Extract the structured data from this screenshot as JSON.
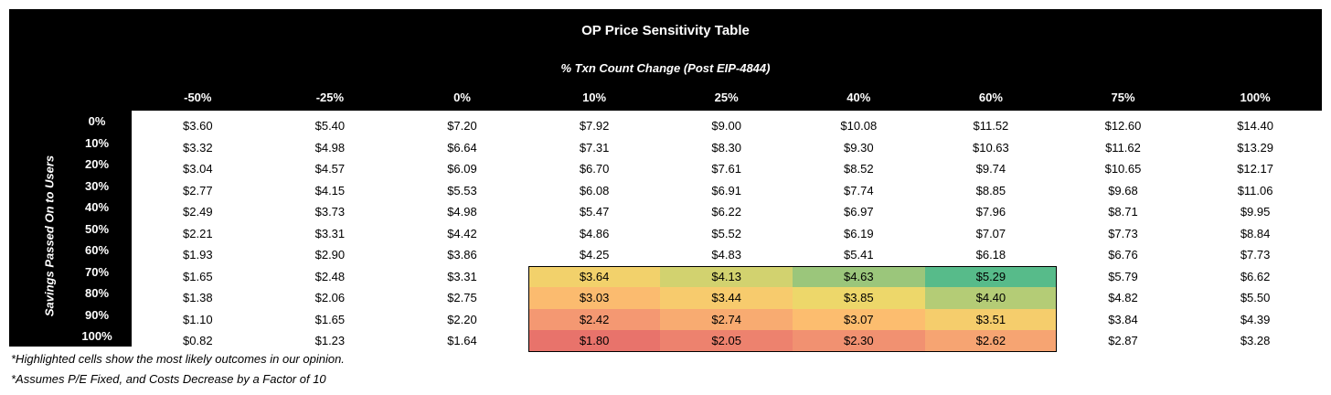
{
  "chart_data": {
    "type": "table",
    "title": "OP Price Sensitivity Table",
    "xlabel": "% Txn Count Change (Post EIP-4844)",
    "ylabel": "Savings Passed On to Users",
    "columns": [
      "-50%",
      "-25%",
      "0%",
      "10%",
      "25%",
      "40%",
      "60%",
      "75%",
      "100%"
    ],
    "rows": [
      "0%",
      "10%",
      "20%",
      "30%",
      "40%",
      "50%",
      "60%",
      "70%",
      "80%",
      "90%",
      "100%"
    ],
    "values": [
      [
        "$3.60",
        "$5.40",
        "$7.20",
        "$7.92",
        "$9.00",
        "$10.08",
        "$11.52",
        "$12.60",
        "$14.40"
      ],
      [
        "$3.32",
        "$4.98",
        "$6.64",
        "$7.31",
        "$8.30",
        "$9.30",
        "$10.63",
        "$11.62",
        "$13.29"
      ],
      [
        "$3.04",
        "$4.57",
        "$6.09",
        "$6.70",
        "$7.61",
        "$8.52",
        "$9.74",
        "$10.65",
        "$12.17"
      ],
      [
        "$2.77",
        "$4.15",
        "$5.53",
        "$6.08",
        "$6.91",
        "$7.74",
        "$8.85",
        "$9.68",
        "$11.06"
      ],
      [
        "$2.49",
        "$3.73",
        "$4.98",
        "$5.47",
        "$6.22",
        "$6.97",
        "$7.96",
        "$8.71",
        "$9.95"
      ],
      [
        "$2.21",
        "$3.31",
        "$4.42",
        "$4.86",
        "$5.52",
        "$6.19",
        "$7.07",
        "$7.73",
        "$8.84"
      ],
      [
        "$1.93",
        "$2.90",
        "$3.86",
        "$4.25",
        "$4.83",
        "$5.41",
        "$6.18",
        "$6.76",
        "$7.73"
      ],
      [
        "$1.65",
        "$2.48",
        "$3.31",
        "$3.64",
        "$4.13",
        "$4.63",
        "$5.29",
        "$5.79",
        "$6.62"
      ],
      [
        "$1.38",
        "$2.06",
        "$2.75",
        "$3.03",
        "$3.44",
        "$3.85",
        "$4.40",
        "$4.82",
        "$5.50"
      ],
      [
        "$1.10",
        "$1.65",
        "$2.20",
        "$2.42",
        "$2.74",
        "$3.07",
        "$3.51",
        "$3.84",
        "$4.39"
      ],
      [
        "$0.82",
        "$1.23",
        "$1.64",
        "$1.80",
        "$2.05",
        "$2.30",
        "$2.62",
        "$2.87",
        "$3.28"
      ]
    ],
    "highlight": {
      "rows": [
        "70%",
        "80%",
        "90%",
        "100%"
      ],
      "columns": [
        "10%",
        "25%",
        "40%",
        "60%"
      ],
      "scale": "red-yellow-green (low to high)",
      "colors": [
        "#e8736b",
        "#f59d73",
        "#fdc46e",
        "#ecd86a",
        "#9fc77a",
        "#57bb8a"
      ]
    },
    "notes": [
      "*Highlighted cells show the most likely outcomes in our opinion.",
      "*Assumes P/E Fixed, and Costs Decrease by a Factor of 10"
    ]
  }
}
